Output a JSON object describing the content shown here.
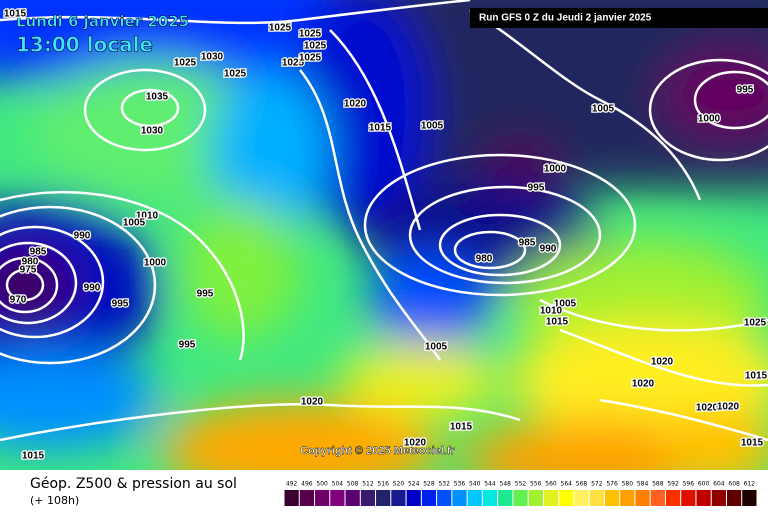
{
  "header": {
    "date": "Lundi 6 janvier 2025",
    "time": "13:00 locale",
    "run": "Run GFS 0 Z du Jeudi 2 janvier 2025",
    "copyright": "Copyright © 2025 Meteociel.fr"
  },
  "footer": {
    "title": "Géop. Z500 & pression au sol",
    "lead": "(+ 108h)"
  },
  "scale": {
    "values": [
      492,
      496,
      500,
      504,
      508,
      512,
      516,
      520,
      524,
      528,
      532,
      536,
      540,
      544,
      548,
      552,
      556,
      560,
      564,
      568,
      572,
      576,
      580,
      584,
      588,
      592,
      596,
      600,
      604,
      608,
      612
    ],
    "colors": [
      "#3a0030",
      "#55004a",
      "#700068",
      "#800080",
      "#5a0070",
      "#3a1a6a",
      "#22236a",
      "#1a1a90",
      "#0000c8",
      "#0020f0",
      "#0050ff",
      "#0090ff",
      "#00c8ff",
      "#00e8e0",
      "#20e890",
      "#60f050",
      "#a0f030",
      "#e0f020",
      "#ffff00",
      "#fff060",
      "#ffe040",
      "#ffc000",
      "#ffa000",
      "#ff8000",
      "#ff6020",
      "#ff3000",
      "#e01000",
      "#c00000",
      "#900000",
      "#600000",
      "#200000"
    ]
  },
  "isobar_labels": [
    1015,
    1025,
    1025,
    1025,
    1025,
    1025,
    1025,
    1030,
    1025,
    1035,
    1030,
    1020,
    1015,
    1005,
    1005,
    995,
    1000,
    1000,
    995,
    1010,
    1005,
    990,
    985,
    980,
    975,
    970,
    990,
    995,
    1000,
    995,
    995,
    985,
    990,
    980,
    1005,
    1010,
    1015,
    1005,
    1020,
    1020,
    1020,
    1020,
    1025,
    1015,
    1015,
    1020,
    1020,
    1015,
    1015
  ]
}
